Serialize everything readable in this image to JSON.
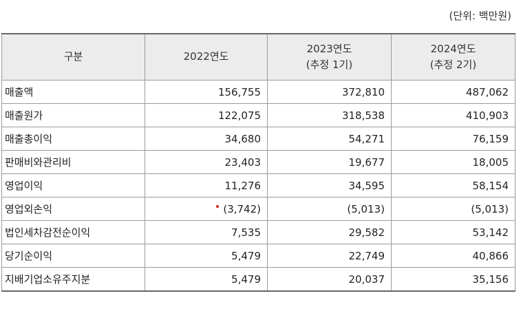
{
  "unit_label": "(단위: 백만원)",
  "table": {
    "headers": [
      {
        "line1": "구분",
        "line2": ""
      },
      {
        "line1": "2022연도",
        "line2": ""
      },
      {
        "line1": "2023연도",
        "line2": "(추정 1기)"
      },
      {
        "line1": "2024연도",
        "line2": "(추정 2기)"
      }
    ],
    "rows": [
      {
        "label": "매출액",
        "values": [
          "156,755",
          "372,810",
          "487,062"
        ]
      },
      {
        "label": "매출원가",
        "values": [
          "122,075",
          "318,538",
          "410,903"
        ]
      },
      {
        "label": "매출총이익",
        "values": [
          "34,680",
          "54,271",
          "76,159"
        ]
      },
      {
        "label": "판매비와관리비",
        "values": [
          "23,403",
          "19,677",
          "18,005"
        ]
      },
      {
        "label": "영업이익",
        "values": [
          "11,276",
          "34,595",
          "58,154"
        ]
      },
      {
        "label": "영업외손익",
        "values": [
          "(3,742)",
          "(5,013)",
          "(5,013)"
        ]
      },
      {
        "label": "법인세차감전순이익",
        "values": [
          "7,535",
          "29,582",
          "53,142"
        ]
      },
      {
        "label": "당기순이익",
        "values": [
          "5,479",
          "22,749",
          "40,866"
        ]
      },
      {
        "label": "지배기업소유주지분",
        "values": [
          "5,479",
          "20,037",
          "35,156"
        ]
      }
    ]
  }
}
